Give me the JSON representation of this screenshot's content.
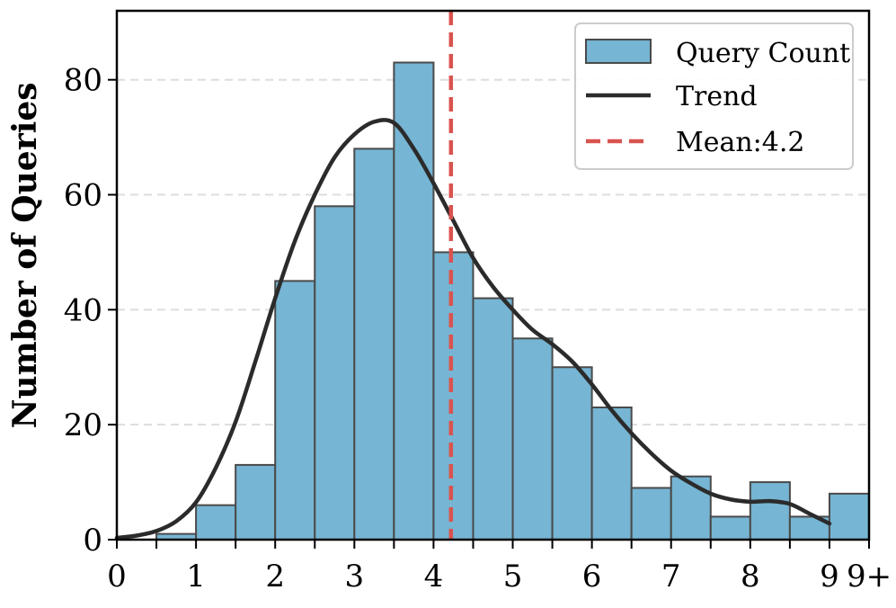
{
  "chart_data": {
    "type": "bar",
    "title": "",
    "xlabel": "",
    "ylabel": "Number of Queries",
    "xlim": [
      0,
      9.5
    ],
    "ylim": [
      0,
      92
    ],
    "bin_width": 0.5,
    "bins_left_edges": [
      0.5,
      1.0,
      1.5,
      2.0,
      2.5,
      3.0,
      3.5,
      4.0,
      4.5,
      5.0,
      5.5,
      6.0,
      6.5,
      7.0,
      7.5,
      8.0,
      8.5,
      9.0
    ],
    "series": [
      {
        "name": "Query Count",
        "type": "histogram",
        "color": "#76b5d3",
        "edgecolor": "#4a4a4a",
        "values": [
          1,
          6,
          13,
          45,
          58,
          68,
          83,
          50,
          42,
          35,
          30,
          23,
          9,
          11,
          4,
          10,
          4,
          8
        ]
      },
      {
        "name": "Trend",
        "type": "line",
        "color": "#2b2b2b",
        "x": [
          0,
          0.25,
          0.5,
          0.75,
          1.0,
          1.25,
          1.5,
          1.75,
          2.0,
          2.25,
          2.5,
          2.75,
          3.0,
          3.25,
          3.5,
          3.75,
          4.0,
          4.25,
          4.5,
          4.75,
          5.0,
          5.25,
          5.5,
          5.75,
          6.0,
          6.25,
          6.5,
          6.75,
          7.0,
          7.25,
          7.5,
          7.75,
          8.0,
          8.25,
          8.5,
          8.75,
          9.0
        ],
        "y": [
          0.3,
          0.7,
          1.5,
          3.2,
          6.5,
          12.5,
          20.5,
          31,
          42,
          52,
          60,
          66.5,
          70.5,
          72.7,
          72.5,
          68,
          62,
          55.5,
          49,
          44,
          40,
          36.5,
          34,
          31,
          27,
          22.5,
          18.5,
          15,
          12,
          9.8,
          8,
          7,
          6.6,
          6.7,
          6.2,
          4.5,
          2.8
        ]
      },
      {
        "name": "Mean:4.2",
        "type": "vline",
        "color": "#d9534f",
        "x": 4.22
      }
    ],
    "xticks": [
      0,
      1,
      2,
      3,
      4,
      5,
      6,
      7,
      8,
      9,
      9.5
    ],
    "xtick_labels": [
      "0",
      "1",
      "2",
      "3",
      "4",
      "5",
      "6",
      "7",
      "8",
      "9",
      "9+"
    ],
    "xtick_minor": [
      0.5,
      1.5,
      2.5,
      3.5,
      4.5,
      5.5,
      6.5,
      7.5,
      8.5
    ],
    "yticks": [
      0,
      20,
      40,
      60,
      80
    ],
    "ytick_labels": [
      "0",
      "20",
      "40",
      "60",
      "80"
    ],
    "grid": "y-dashed",
    "legend": {
      "position": "top-right",
      "entries": [
        "Query Count",
        "Trend",
        "Mean:4.2"
      ]
    }
  }
}
